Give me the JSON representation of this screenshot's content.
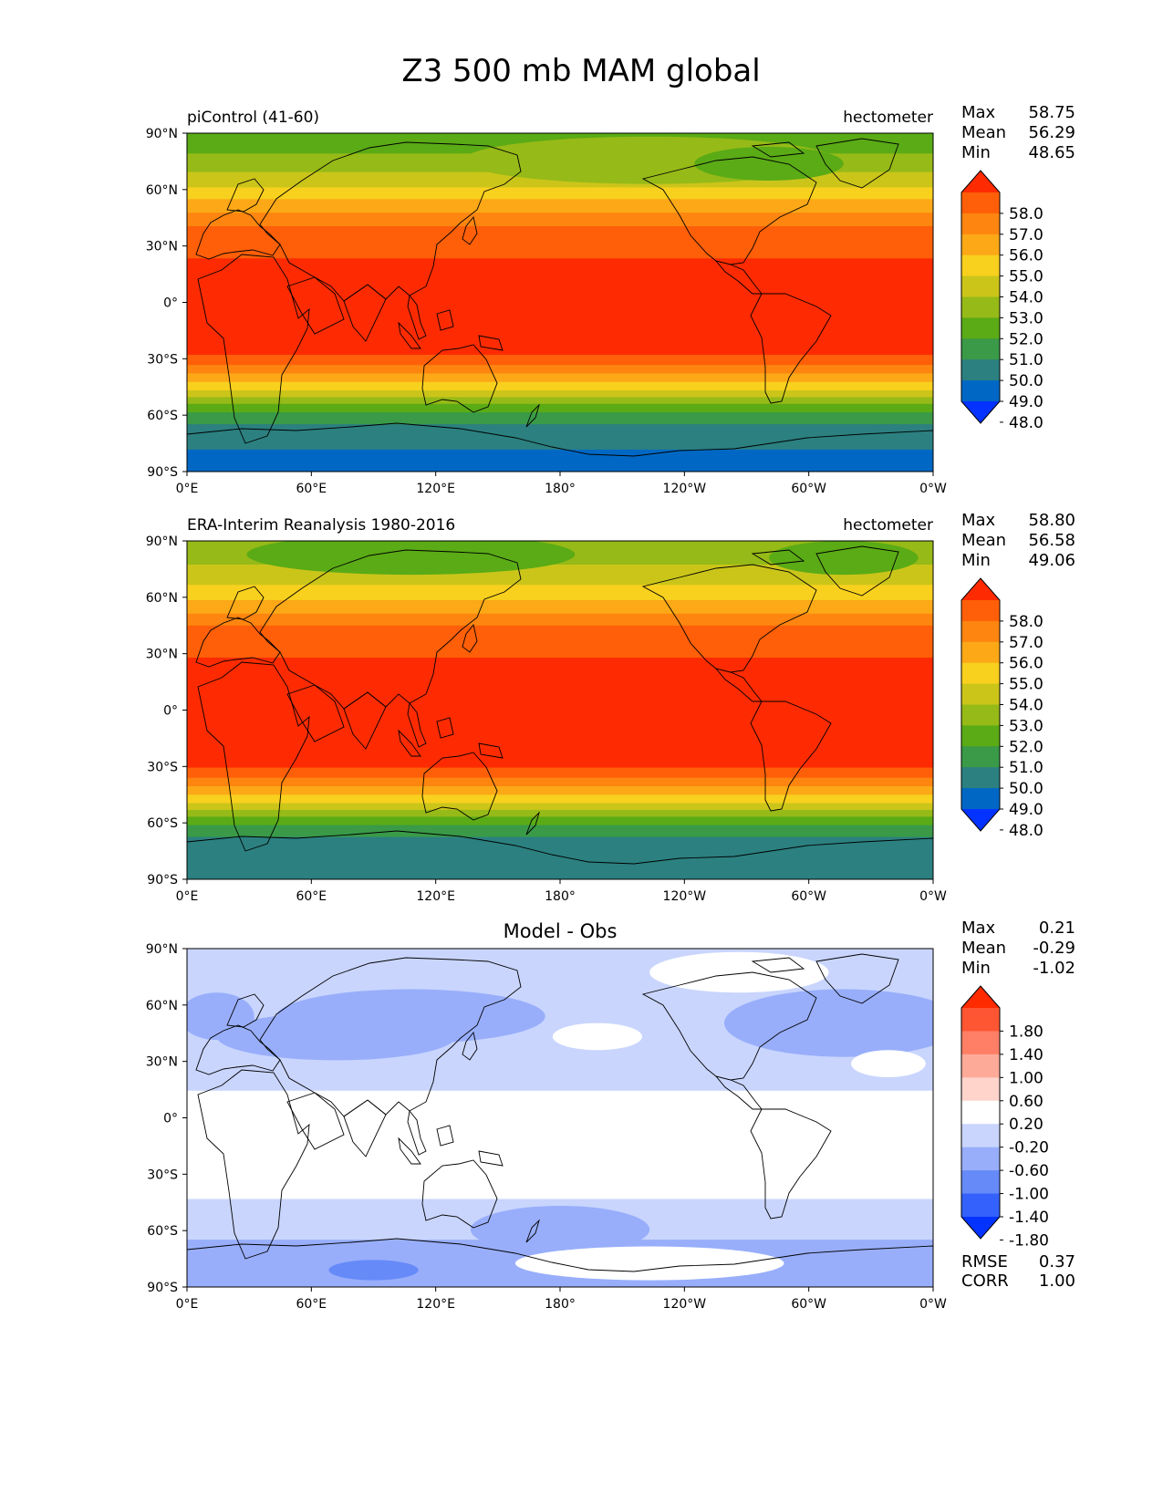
{
  "figure": {
    "title": "Z3 500 mb MAM global"
  },
  "axes": {
    "lat_ticks": [
      "90°N",
      "60°N",
      "30°N",
      "0°",
      "30°S",
      "60°S",
      "90°S"
    ],
    "lon_ticks": [
      "0°E",
      "60°E",
      "120°E",
      "180°",
      "120°W",
      "60°W",
      "0°W"
    ]
  },
  "panels": [
    {
      "left_title": "piControl (41-60)",
      "center_title": "",
      "units": "hectometer",
      "stats": [
        {
          "label": "Max",
          "value": "58.75"
        },
        {
          "label": "Mean",
          "value": "56.29"
        },
        {
          "label": "Min",
          "value": "48.65"
        }
      ],
      "colorbar_labels": [
        "58.0",
        "57.0",
        "56.0",
        "55.0",
        "54.0",
        "53.0",
        "52.0",
        "51.0",
        "50.0",
        "49.0",
        "48.0"
      ],
      "bottom_stats": []
    },
    {
      "left_title": "ERA-Interim Reanalysis 1980-2016",
      "center_title": "",
      "units": "hectometer",
      "stats": [
        {
          "label": "Max",
          "value": "58.80"
        },
        {
          "label": "Mean",
          "value": "56.58"
        },
        {
          "label": "Min",
          "value": "49.06"
        }
      ],
      "colorbar_labels": [
        "58.0",
        "57.0",
        "56.0",
        "55.0",
        "54.0",
        "53.0",
        "52.0",
        "51.0",
        "50.0",
        "49.0",
        "48.0"
      ],
      "bottom_stats": []
    },
    {
      "left_title": "",
      "center_title": "Model - Obs",
      "units": "",
      "stats": [
        {
          "label": "Max",
          "value": "0.21"
        },
        {
          "label": "Mean",
          "value": "-0.29"
        },
        {
          "label": "Min",
          "value": "-1.02"
        }
      ],
      "colorbar_labels": [
        "1.80",
        "1.40",
        "1.00",
        "0.60",
        "0.20",
        "-0.20",
        "-0.60",
        "-1.00",
        "-1.40",
        "-1.80"
      ],
      "bottom_stats": [
        {
          "label": "RMSE",
          "value": "0.37"
        },
        {
          "label": "CORR",
          "value": "1.00"
        }
      ]
    }
  ],
  "palettes": {
    "field_colors": [
      "#0432ff",
      "#0068c4",
      "#2c8080",
      "#3a9a48",
      "#5aab16",
      "#96ba17",
      "#cbc51a",
      "#f8d01e",
      "#fca817",
      "#fd8510",
      "#fe5f08",
      "#fe2b02"
    ],
    "diff_colors": [
      "#0433ff",
      "#3461fb",
      "#668af8",
      "#98aefb",
      "#c9d5fd",
      "#ffffff",
      "#fed4cb",
      "#feaa99",
      "#fe7f66",
      "#fe5533",
      "#fe2a00"
    ],
    "land_outline": "#000000"
  }
}
